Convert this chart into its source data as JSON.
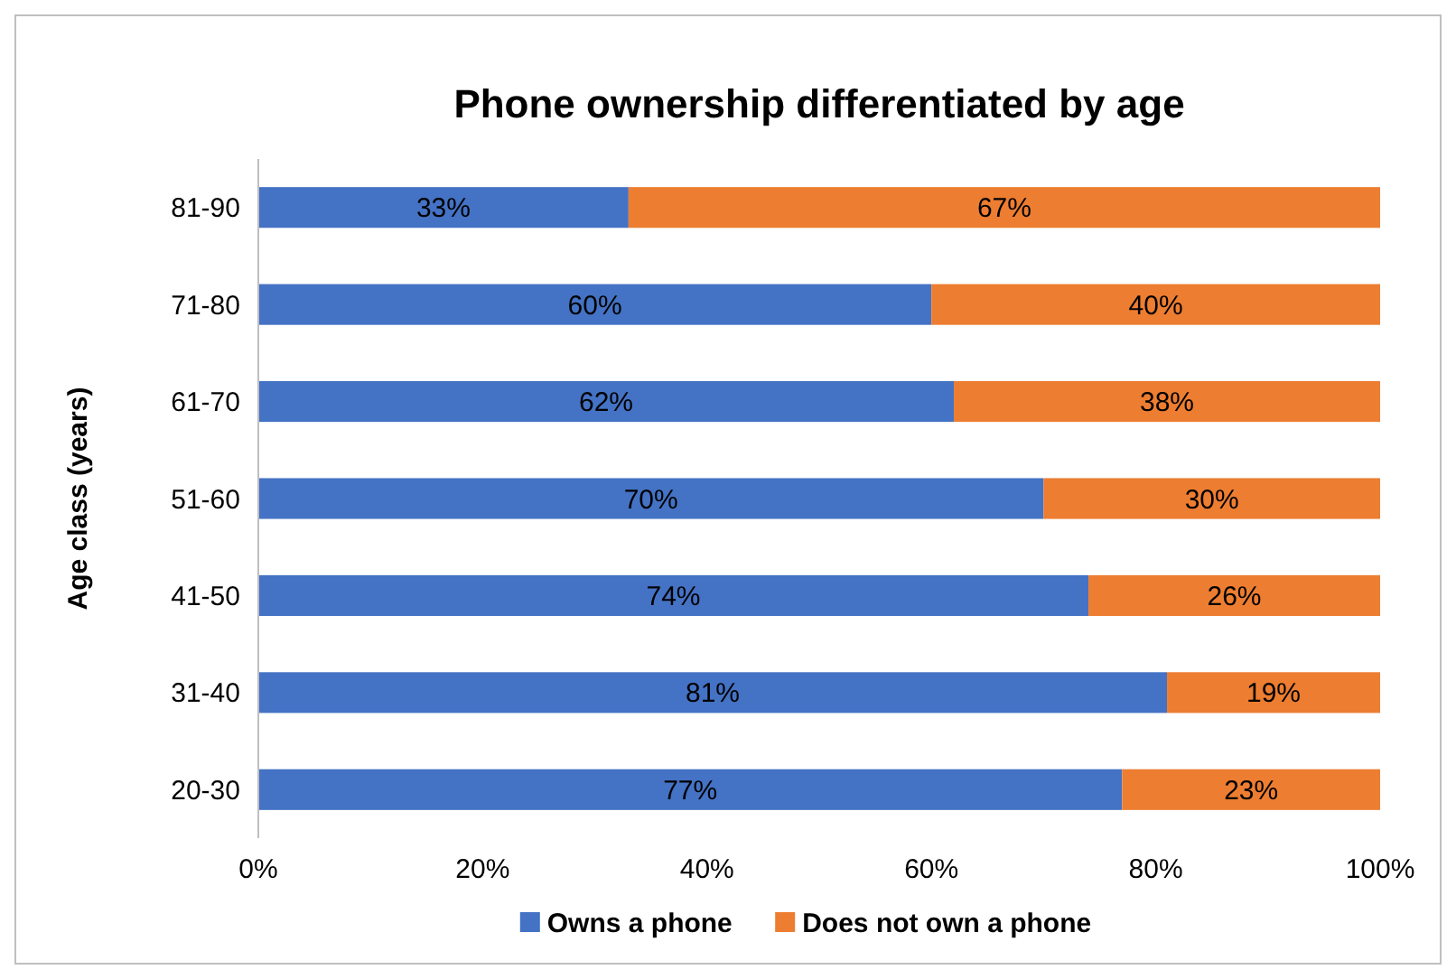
{
  "chart_data": {
    "type": "bar",
    "orientation": "horizontal",
    "stacked": true,
    "title": "Phone ownership differentiated by age",
    "ylabel": "Age class (years)",
    "categories": [
      "81-90",
      "71-80",
      "61-70",
      "51-60",
      "41-50",
      "31-40",
      "20-30"
    ],
    "series": [
      {
        "name": "Owns a phone",
        "color": "#4472c4",
        "values": [
          33,
          60,
          62,
          70,
          74,
          81,
          77
        ],
        "value_labels": [
          "33%",
          "60%",
          "62%",
          "70%",
          "74%",
          "81%",
          "77%"
        ]
      },
      {
        "name": "Does not own a phone",
        "color": "#ed7d31",
        "values": [
          67,
          40,
          38,
          30,
          26,
          19,
          23
        ],
        "value_labels": [
          "67%",
          "40%",
          "38%",
          "30%",
          "26%",
          "19%",
          "23%"
        ]
      }
    ],
    "xlim": [
      0,
      100
    ],
    "xticks": [
      {
        "value": 0,
        "label": "0%"
      },
      {
        "value": 20,
        "label": "20%"
      },
      {
        "value": 40,
        "label": "40%"
      },
      {
        "value": 60,
        "label": "60%"
      },
      {
        "value": 80,
        "label": "80%"
      },
      {
        "value": 100,
        "label": "100%"
      }
    ],
    "grid": false,
    "legend": "bottom"
  }
}
